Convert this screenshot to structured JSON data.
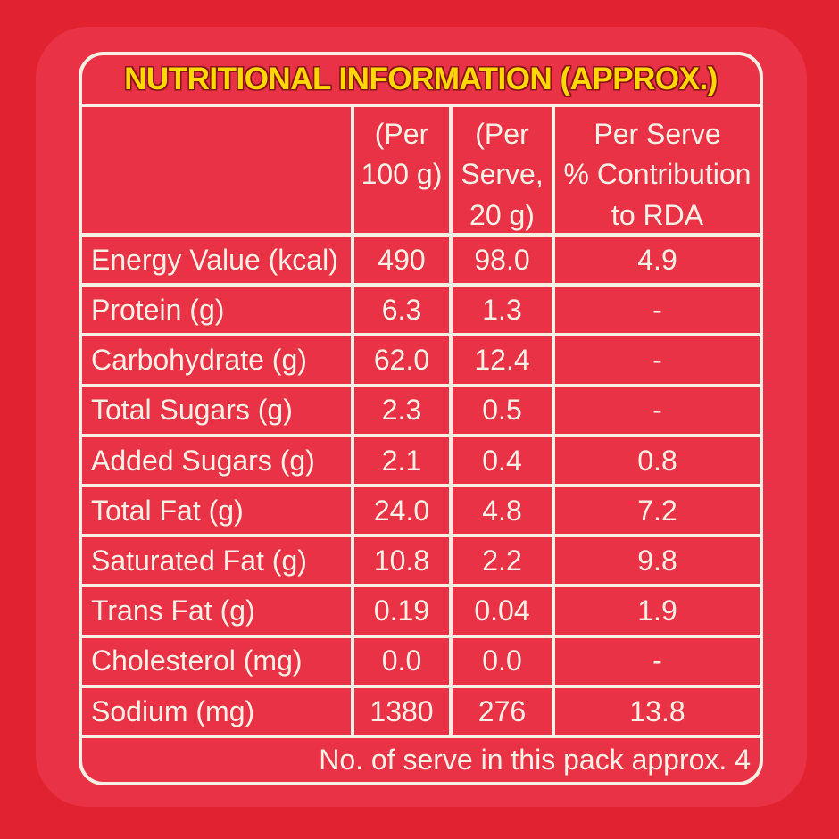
{
  "title": "NUTRITIONAL INFORMATION (APPROX.)",
  "header": {
    "blank": "",
    "per_100g": "(Per\n100 g)",
    "per_serve": "(Per\nServe,\n20 g)",
    "rda": "Per Serve\n% Contribution\nto RDA"
  },
  "rows": [
    {
      "label": "Energy Value (kcal)",
      "per_100g": "490",
      "per_serve": "98.0",
      "rda": "4.9"
    },
    {
      "label": "Protein (g)",
      "per_100g": "6.3",
      "per_serve": "1.3",
      "rda": "-"
    },
    {
      "label": "Carbohydrate (g)",
      "per_100g": "62.0",
      "per_serve": "12.4",
      "rda": "-"
    },
    {
      "label": "Total Sugars (g)",
      "per_100g": "2.3",
      "per_serve": "0.5",
      "rda": "-"
    },
    {
      "label": "Added Sugars (g)",
      "per_100g": "2.1",
      "per_serve": "0.4",
      "rda": "0.8"
    },
    {
      "label": "Total Fat (g)",
      "per_100g": "24.0",
      "per_serve": "4.8",
      "rda": "7.2"
    },
    {
      "label": "Saturated Fat (g)",
      "per_100g": "10.8",
      "per_serve": "2.2",
      "rda": "9.8"
    },
    {
      "label": "Trans Fat (g)",
      "per_100g": "0.19",
      "per_serve": "0.04",
      "rda": "1.9"
    },
    {
      "label": "Cholesterol (mg)",
      "per_100g": "0.0",
      "per_serve": "0.0",
      "rda": "-"
    },
    {
      "label": "Sodium (mg)",
      "per_100g": "1380",
      "per_serve": "276",
      "rda": "13.8"
    }
  ],
  "footer": "No. of serve in this pack approx. 4",
  "colors": {
    "background": "#e12231",
    "panel": "#e93245",
    "border": "#f6f0e4",
    "text": "#f6f1e6",
    "title": "#ffd800",
    "title_outline": "#8a141c"
  }
}
